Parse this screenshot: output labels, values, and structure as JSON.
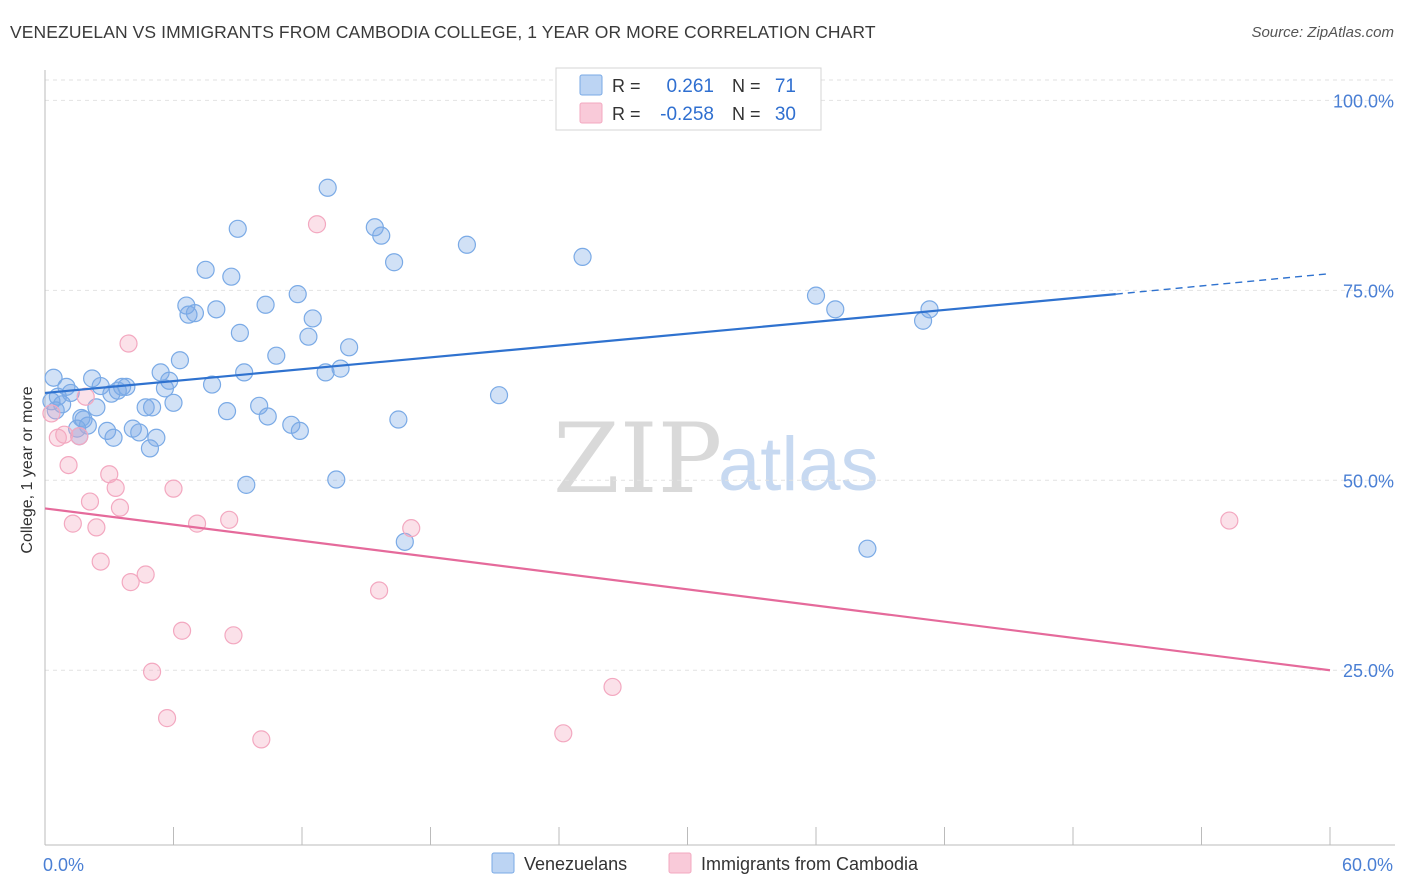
{
  "header": {
    "title": "VENEZUELAN VS IMMIGRANTS FROM CAMBODIA COLLEGE, 1 YEAR OR MORE CORRELATION CHART",
    "source": "Source: ZipAtlas.com"
  },
  "watermark": {
    "zip": "ZIP",
    "atlas": "atlas"
  },
  "legend_top": {
    "rows": [
      {
        "r_label": "R =",
        "r_value": "0.261",
        "n_label": "N =",
        "n_value": "71"
      },
      {
        "r_label": "R =",
        "r_value": "-0.258",
        "n_label": "N =",
        "n_value": "30"
      }
    ]
  },
  "chart_data": {
    "type": "scatter",
    "ylabel": "College, 1 year or more",
    "xlabel": "",
    "xlim": [
      0,
      60
    ],
    "ylim": [
      2,
      104
    ],
    "y_ticks": [
      {
        "value": 25,
        "label": "25.0%"
      },
      {
        "value": 50,
        "label": "50.0%"
      },
      {
        "value": 75,
        "label": "75.0%"
      },
      {
        "value": 100,
        "label": "100.0%"
      }
    ],
    "x_tick_labels": [
      {
        "value": 0,
        "label": "0.0%"
      },
      {
        "value": 60,
        "label": "60.0%"
      }
    ],
    "x_minor_ticks": [
      0,
      6,
      12,
      18,
      24,
      30,
      36,
      42,
      48,
      54,
      60
    ],
    "grid": true,
    "legend_position": "bottom",
    "series": [
      {
        "name": "Venezuelans",
        "color": "#7aaae6",
        "line_color": "#2f72cf",
        "trend": {
          "x0": 0,
          "y0": 61.5,
          "x1": 50,
          "y1": 74.5,
          "dash_to_x": 60,
          "dash_to_y": 77.2
        },
        "points": [
          [
            0.4,
            63.5
          ],
          [
            0.5,
            59.2
          ],
          [
            0.8,
            60.0
          ],
          [
            1.0,
            62.3
          ],
          [
            1.2,
            61.5
          ],
          [
            1.5,
            56.8
          ],
          [
            1.6,
            55.8
          ],
          [
            1.8,
            58.0
          ],
          [
            2.0,
            57.2
          ],
          [
            2.2,
            63.4
          ],
          [
            2.4,
            59.6
          ],
          [
            2.6,
            62.4
          ],
          [
            2.9,
            56.5
          ],
          [
            3.2,
            55.6
          ],
          [
            3.4,
            61.8
          ],
          [
            3.6,
            62.3
          ],
          [
            3.8,
            62.3
          ],
          [
            4.1,
            56.8
          ],
          [
            4.4,
            56.3
          ],
          [
            4.7,
            59.6
          ],
          [
            4.9,
            54.2
          ],
          [
            5.0,
            59.6
          ],
          [
            5.2,
            55.6
          ],
          [
            5.4,
            64.2
          ],
          [
            5.6,
            62.1
          ],
          [
            5.8,
            63.1
          ],
          [
            6.0,
            60.2
          ],
          [
            6.3,
            65.8
          ],
          [
            6.6,
            73.0
          ],
          [
            6.7,
            71.8
          ],
          [
            7.0,
            72.0
          ],
          [
            7.5,
            77.7
          ],
          [
            7.8,
            62.6
          ],
          [
            8.0,
            72.5
          ],
          [
            8.5,
            59.1
          ],
          [
            8.7,
            76.8
          ],
          [
            9.0,
            83.1
          ],
          [
            9.1,
            69.4
          ],
          [
            9.3,
            64.2
          ],
          [
            9.4,
            49.4
          ],
          [
            10.0,
            59.8
          ],
          [
            10.3,
            73.1
          ],
          [
            10.4,
            58.4
          ],
          [
            10.8,
            66.4
          ],
          [
            11.5,
            57.3
          ],
          [
            11.8,
            74.5
          ],
          [
            11.9,
            56.5
          ],
          [
            12.3,
            68.9
          ],
          [
            12.5,
            71.3
          ],
          [
            13.1,
            64.2
          ],
          [
            13.2,
            88.5
          ],
          [
            13.6,
            50.1
          ],
          [
            13.8,
            64.7
          ],
          [
            14.2,
            67.5
          ],
          [
            15.4,
            83.3
          ],
          [
            15.7,
            82.2
          ],
          [
            16.3,
            78.7
          ],
          [
            16.5,
            58.0
          ],
          [
            16.8,
            41.9
          ],
          [
            19.7,
            81.0
          ],
          [
            21.2,
            61.2
          ],
          [
            25.1,
            79.4
          ],
          [
            36.0,
            74.3
          ],
          [
            36.9,
            72.5
          ],
          [
            38.4,
            41.0
          ],
          [
            41.0,
            71.0
          ],
          [
            41.3,
            72.5
          ],
          [
            0.3,
            60.4
          ],
          [
            0.6,
            61.0
          ],
          [
            3.1,
            61.4
          ],
          [
            1.7,
            58.2
          ]
        ]
      },
      {
        "name": "Immigrants from Cambodia",
        "color": "#f3a8c0",
        "line_color": "#e56a9b",
        "trend": {
          "x0": 0,
          "y0": 46.3,
          "x1": 60,
          "y1": 25.0
        },
        "points": [
          [
            0.3,
            58.8
          ],
          [
            0.6,
            55.6
          ],
          [
            0.9,
            56.0
          ],
          [
            1.1,
            52.0
          ],
          [
            1.3,
            44.3
          ],
          [
            1.6,
            55.8
          ],
          [
            1.9,
            61.0
          ],
          [
            2.1,
            47.2
          ],
          [
            2.4,
            43.8
          ],
          [
            2.6,
            39.3
          ],
          [
            3.0,
            50.8
          ],
          [
            3.3,
            49.0
          ],
          [
            3.5,
            46.4
          ],
          [
            4.0,
            36.6
          ],
          [
            4.7,
            37.6
          ],
          [
            5.0,
            24.8
          ],
          [
            5.7,
            18.7
          ],
          [
            6.0,
            48.9
          ],
          [
            6.4,
            30.2
          ],
          [
            7.1,
            44.3
          ],
          [
            8.6,
            44.8
          ],
          [
            8.8,
            29.6
          ],
          [
            10.1,
            15.9
          ],
          [
            12.7,
            83.7
          ],
          [
            15.6,
            35.5
          ],
          [
            17.1,
            43.7
          ],
          [
            24.2,
            16.7
          ],
          [
            26.5,
            22.8
          ],
          [
            55.3,
            44.7
          ],
          [
            3.9,
            68.0
          ]
        ]
      }
    ]
  }
}
